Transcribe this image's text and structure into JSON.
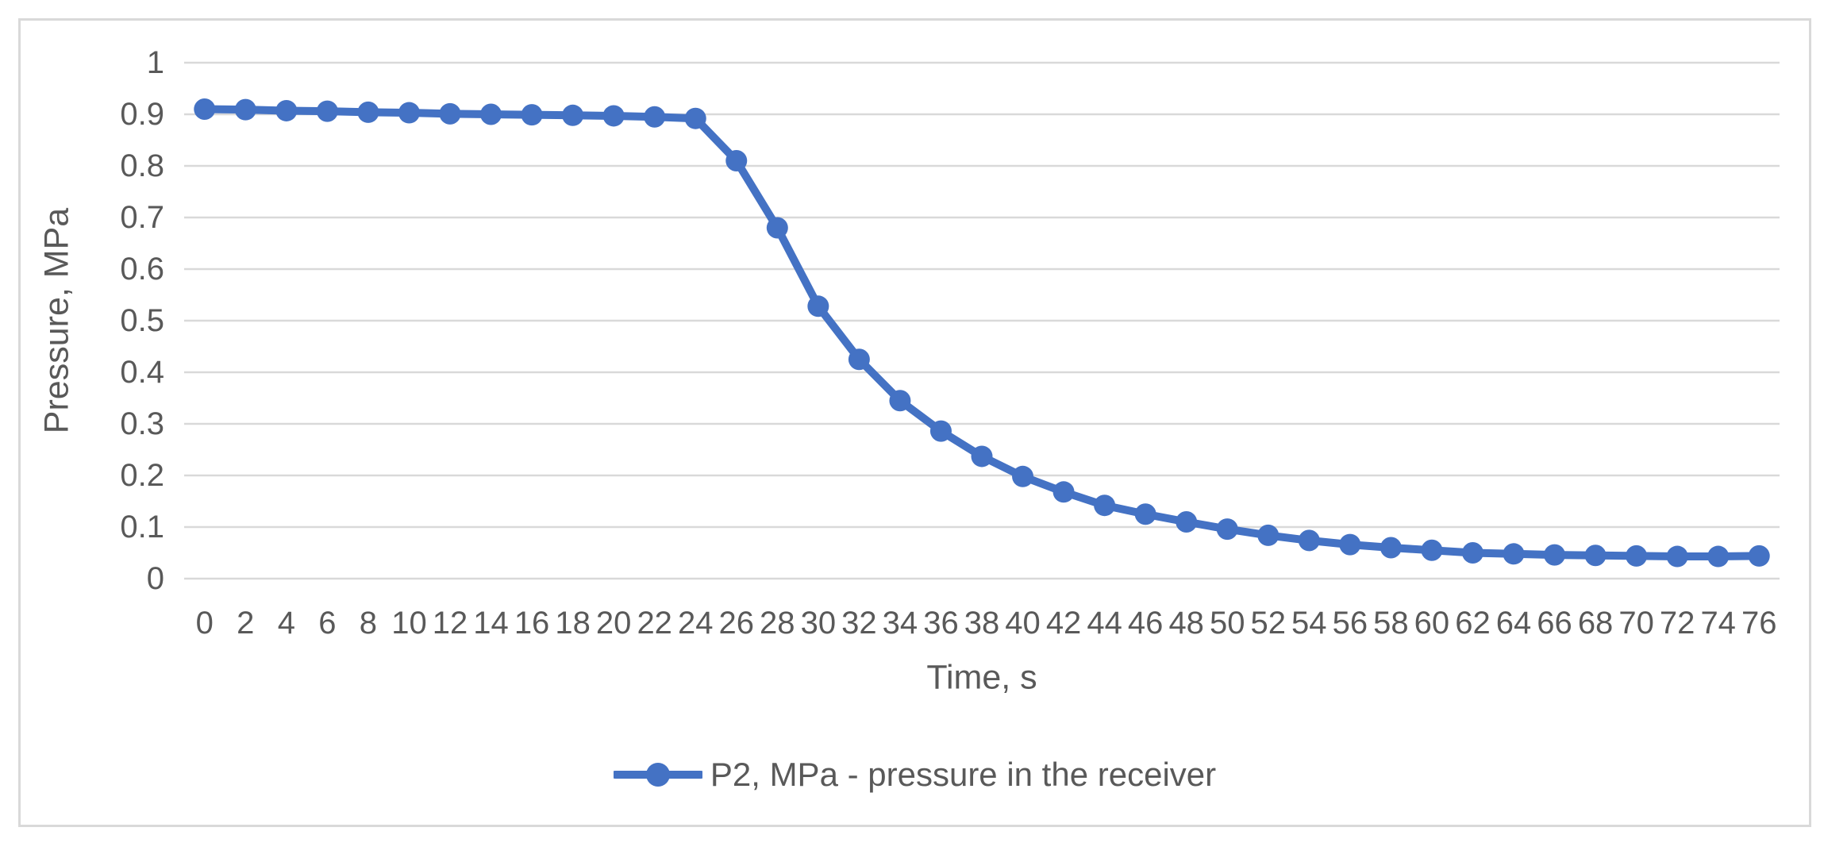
{
  "chart": {
    "background": "#FFFFFF",
    "border_color": "#D9D9D9",
    "gridline_color": "#D9D9D9",
    "text_color": "#595959",
    "y_axis": {
      "title": "Pressure, MPa",
      "tick_labels": [
        "1",
        "0.9",
        "0.8",
        "0.7",
        "0.6",
        "0.5",
        "0.4",
        "0.3",
        "0.2",
        "0.1",
        "0"
      ],
      "min": 0,
      "max": 1
    },
    "x_axis": {
      "title": "Time, s",
      "tick_labels": [
        "0",
        "2",
        "4",
        "6",
        "8",
        "10",
        "12",
        "14",
        "16",
        "18",
        "20",
        "22",
        "24",
        "26",
        "28",
        "30",
        "32",
        "34",
        "36",
        "38",
        "40",
        "42",
        "44",
        "46",
        "48",
        "50",
        "52",
        "54",
        "56",
        "58",
        "60",
        "62",
        "64",
        "66",
        "68",
        "70",
        "72",
        "74",
        "76"
      ]
    },
    "legend": {
      "label": "P2, MPa - pressure in the receiver",
      "position": "bottom-center"
    }
  },
  "chart_data": {
    "type": "line",
    "title": "",
    "xlabel": "Time, s",
    "ylabel": "Pressure, MPa",
    "ylim": [
      0,
      1
    ],
    "y_tick_step": 0.1,
    "grid": "horizontal-only",
    "legend_position": "bottom-center",
    "x": [
      0,
      2,
      4,
      6,
      8,
      10,
      12,
      14,
      16,
      18,
      20,
      22,
      24,
      26,
      28,
      30,
      32,
      34,
      36,
      38,
      40,
      42,
      44,
      46,
      48,
      50,
      52,
      54,
      56,
      58,
      60,
      62,
      64,
      66,
      68,
      70,
      72,
      74,
      76
    ],
    "series": [
      {
        "name": "P2, MPa - pressure in the receiver",
        "color": "#4472C4",
        "marker": "circle",
        "values": [
          0.91,
          0.909,
          0.907,
          0.906,
          0.904,
          0.903,
          0.901,
          0.9,
          0.899,
          0.898,
          0.897,
          0.895,
          0.892,
          0.81,
          0.68,
          0.528,
          0.425,
          0.345,
          0.286,
          0.237,
          0.198,
          0.168,
          0.142,
          0.125,
          0.11,
          0.096,
          0.084,
          0.074,
          0.066,
          0.06,
          0.055,
          0.05,
          0.048,
          0.046,
          0.045,
          0.044,
          0.043,
          0.043,
          0.044
        ]
      }
    ]
  }
}
